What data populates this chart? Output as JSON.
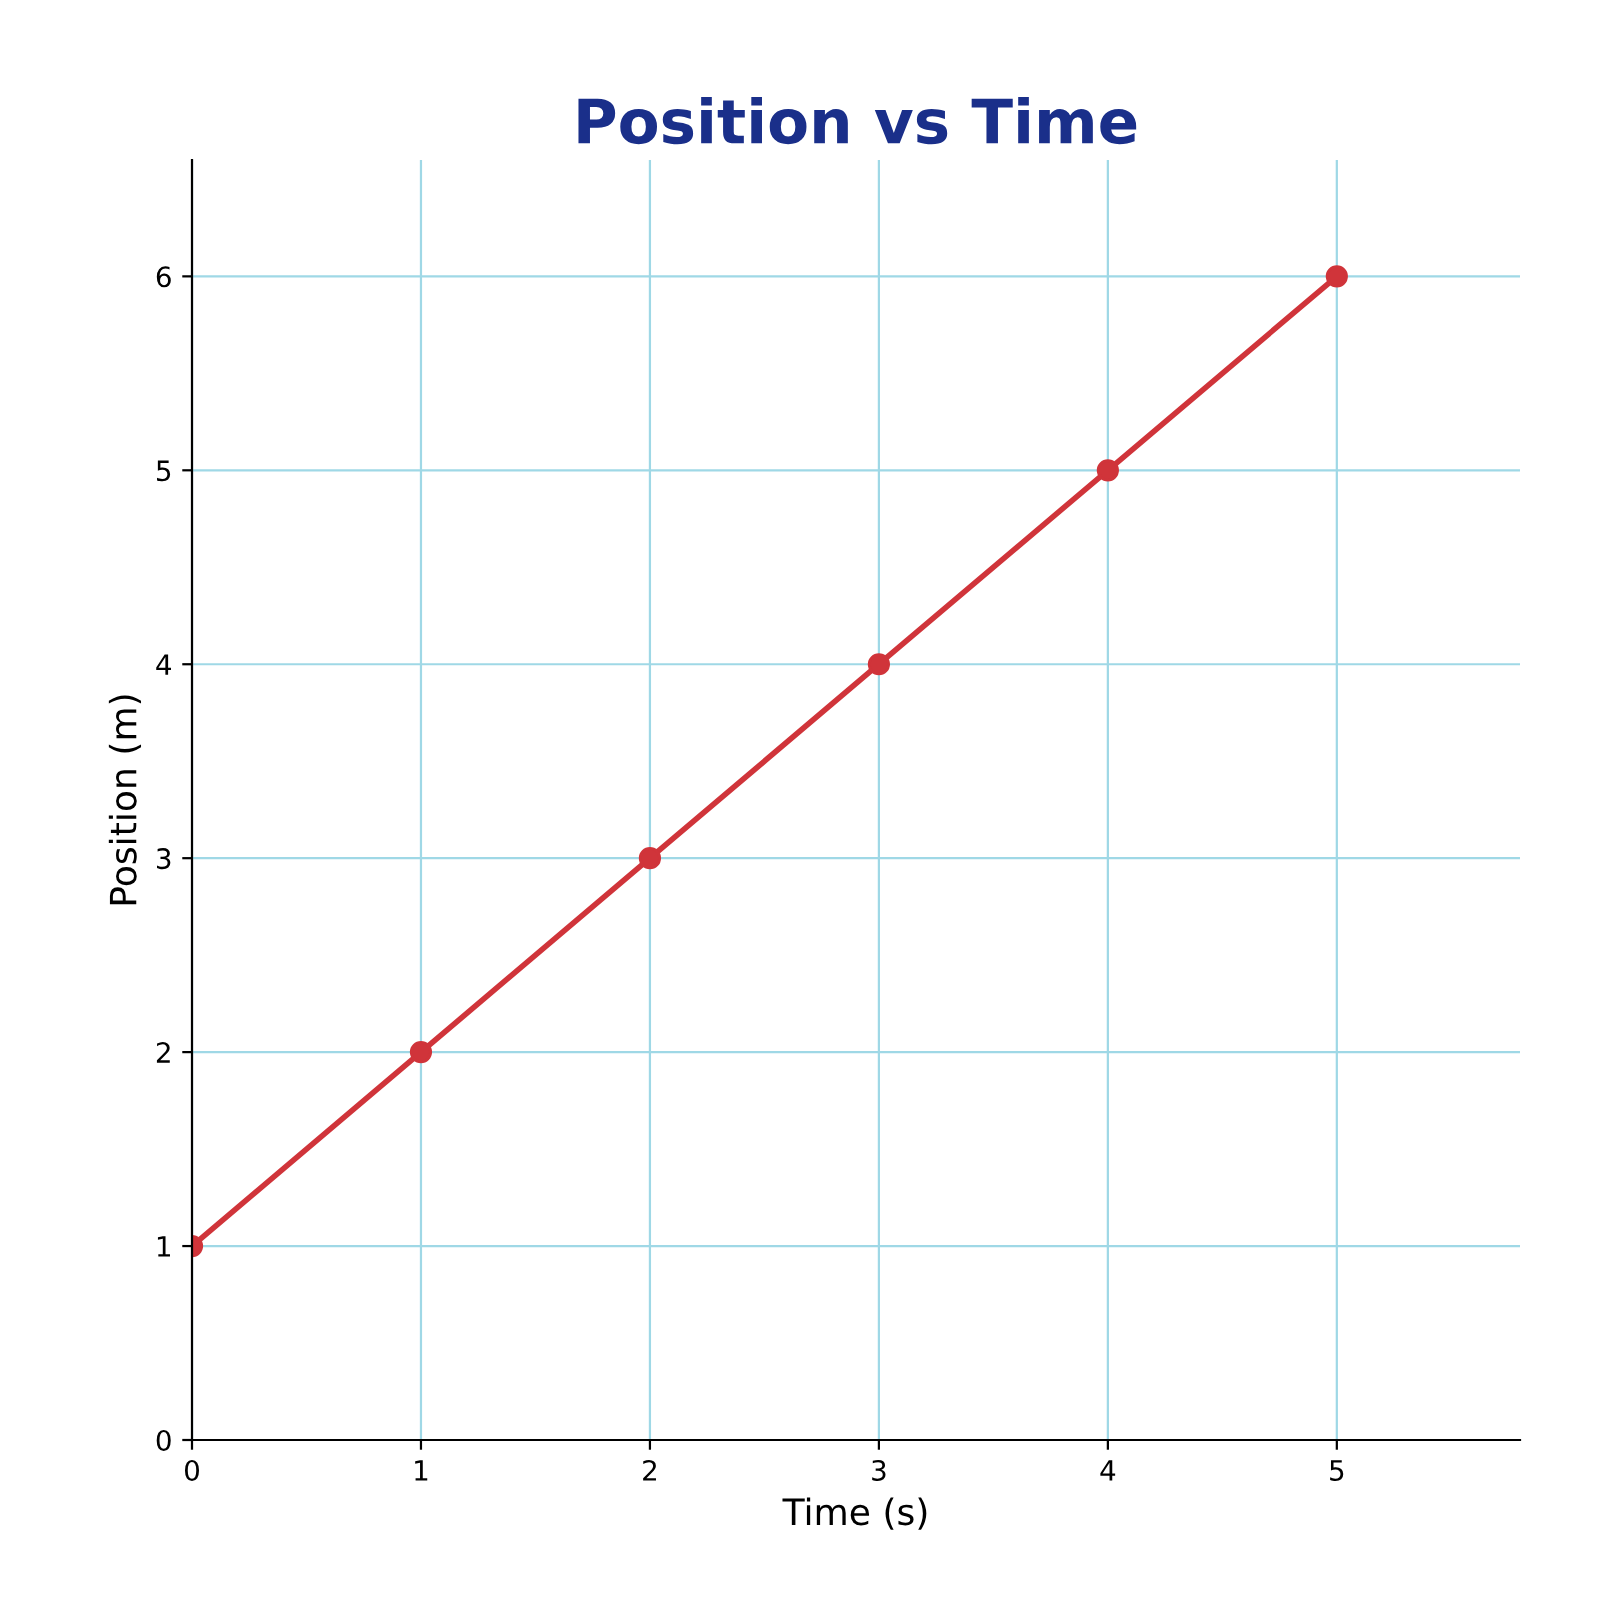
{
  "chart_data": {
    "type": "line",
    "title": "Position vs Time",
    "xlabel": "Time (s)",
    "ylabel": "Position (m)",
    "x": [
      0,
      1,
      2,
      3,
      4,
      5
    ],
    "series": [
      {
        "color": "#d0343a",
        "values": [
          1,
          2,
          3,
          4,
          5,
          6
        ]
      }
    ],
    "xlim": [
      0,
      5.8
    ],
    "ylim": [
      0,
      6.6
    ],
    "xticks": [
      0,
      1,
      2,
      3,
      4,
      5
    ],
    "yticks": [
      0,
      1,
      2,
      3,
      4,
      5,
      6
    ],
    "grid": true,
    "marker": "circle",
    "line_style": "solid"
  }
}
